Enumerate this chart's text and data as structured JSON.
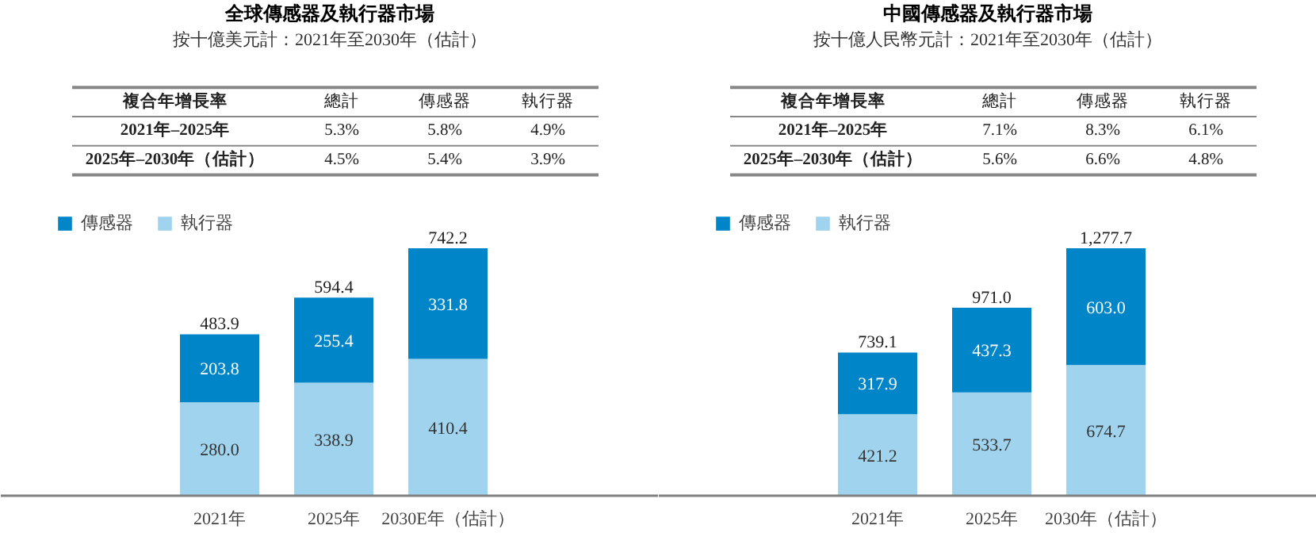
{
  "chart_data": [
    {
      "type": "bar",
      "title": "全球傳感器及執行器市場",
      "subtitle": "按十億美元計：2021年至2030年（估計）",
      "categories": [
        "2021年",
        "2025年",
        "2030E年（估計）"
      ],
      "stacked": true,
      "data_labels": true,
      "legend": "top left",
      "grid": false,
      "annotations": [
        "複合年增長率",
        "總計",
        "傳感器",
        "執行器",
        "2021年–2025年",
        "5.3%",
        "5.8%",
        "4.9%",
        "2025年–2030年（估計）",
        "4.5%",
        "5.4%",
        "3.9%"
      ],
      "series": [
        {
          "name": "執行器",
          "color": "#a0d4ee",
          "values": [
            280.0,
            338.9,
            410.4
          ],
          "value_labels": [
            "280.0",
            "338.9",
            "410.4"
          ]
        },
        {
          "name": "傳感器",
          "color": "#0085c8",
          "values": [
            203.8,
            255.4,
            331.8
          ],
          "value_labels": [
            "203.8",
            "255.4",
            "331.8"
          ]
        }
      ],
      "totals": [
        "483.9",
        "594.4",
        "742.2"
      ]
    },
    {
      "type": "bar",
      "title": "中國傳感器及執行器市場",
      "subtitle": "按十億人民幣元計：2021年至2030年（估計）",
      "categories": [
        "2021年",
        "2025年",
        "2030年（估計）"
      ],
      "stacked": true,
      "data_labels": true,
      "legend": "top left",
      "grid": false,
      "annotations": [
        "複合年增長率",
        "總計",
        "傳感器",
        "執行器",
        "2021年–2025年",
        "7.1%",
        "8.3%",
        "6.1%",
        "2025年–2030年（估計）",
        "5.6%",
        "6.6%",
        "4.8%"
      ],
      "series": [
        {
          "name": "執行器",
          "color": "#a0d4ee",
          "values": [
            421.2,
            533.7,
            674.7
          ],
          "value_labels": [
            "421.2",
            "533.7",
            "674.7"
          ]
        },
        {
          "name": "傳感器",
          "color": "#0085c8",
          "values": [
            317.9,
            437.3,
            603.0
          ],
          "value_labels": [
            "317.9",
            "437.3",
            "603.0"
          ]
        }
      ],
      "totals": [
        "739.1",
        "971.0",
        "1,277.7"
      ]
    }
  ]
}
